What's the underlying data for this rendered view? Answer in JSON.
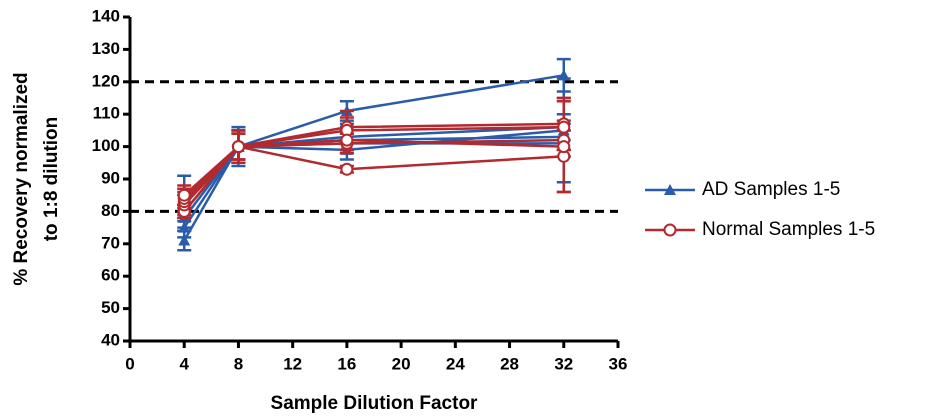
{
  "chart_data": {
    "type": "line",
    "x_label": "Sample Dilution Factor",
    "y_label": [
      "% Recovery normalized",
      "to 1:8 dilution"
    ],
    "x": [
      4,
      8,
      16,
      32
    ],
    "xlim": [
      0,
      36
    ],
    "xticks": [
      0,
      4,
      8,
      12,
      16,
      20,
      24,
      28,
      32,
      36
    ],
    "ylim": [
      40,
      140
    ],
    "yticks": [
      40,
      50,
      60,
      70,
      80,
      90,
      100,
      110,
      120,
      130,
      140
    ],
    "reference_lines": [
      80,
      120
    ],
    "series": [
      {
        "name": "AD Samples 1-5",
        "color": "#2a5caa",
        "marker": "triangle",
        "lines": [
          {
            "values": [
              71,
              100,
              111,
              122
            ],
            "errors": [
              3,
              5,
              3,
              5
            ]
          },
          {
            "values": [
              75,
              100,
              99,
              105
            ],
            "errors": [
              3,
              5,
              3,
              16
            ]
          },
          {
            "values": [
              78,
              100,
              102,
              103
            ],
            "errors": [
              4,
              5,
              4,
              4
            ]
          },
          {
            "values": [
              80,
              100,
              101,
              101
            ],
            "errors": [
              5,
              6,
              3,
              4
            ]
          },
          {
            "values": [
              84,
              100,
              103,
              106
            ],
            "errors": [
              7,
              5,
              4,
              4
            ]
          }
        ]
      },
      {
        "name": "Normal Samples 1-5",
        "color": "#b22a2e",
        "marker": "circle",
        "lines": [
          {
            "values": [
              80,
              100,
              93,
              97
            ],
            "errors": [
              2,
              4,
              1,
              11
            ]
          },
          {
            "values": [
              82,
              100,
              106,
              107
            ],
            "errors": [
              3,
              5,
              5,
              8
            ]
          },
          {
            "values": [
              83,
              100,
              105,
              106
            ],
            "errors": [
              3,
              5,
              4,
              9
            ]
          },
          {
            "values": [
              84,
              100,
              101,
              102
            ],
            "errors": [
              3,
              4,
              3,
              3
            ]
          },
          {
            "values": [
              85,
              100,
              102,
              100
            ],
            "errors": [
              3,
              4,
              3,
              14
            ]
          }
        ]
      }
    ]
  }
}
